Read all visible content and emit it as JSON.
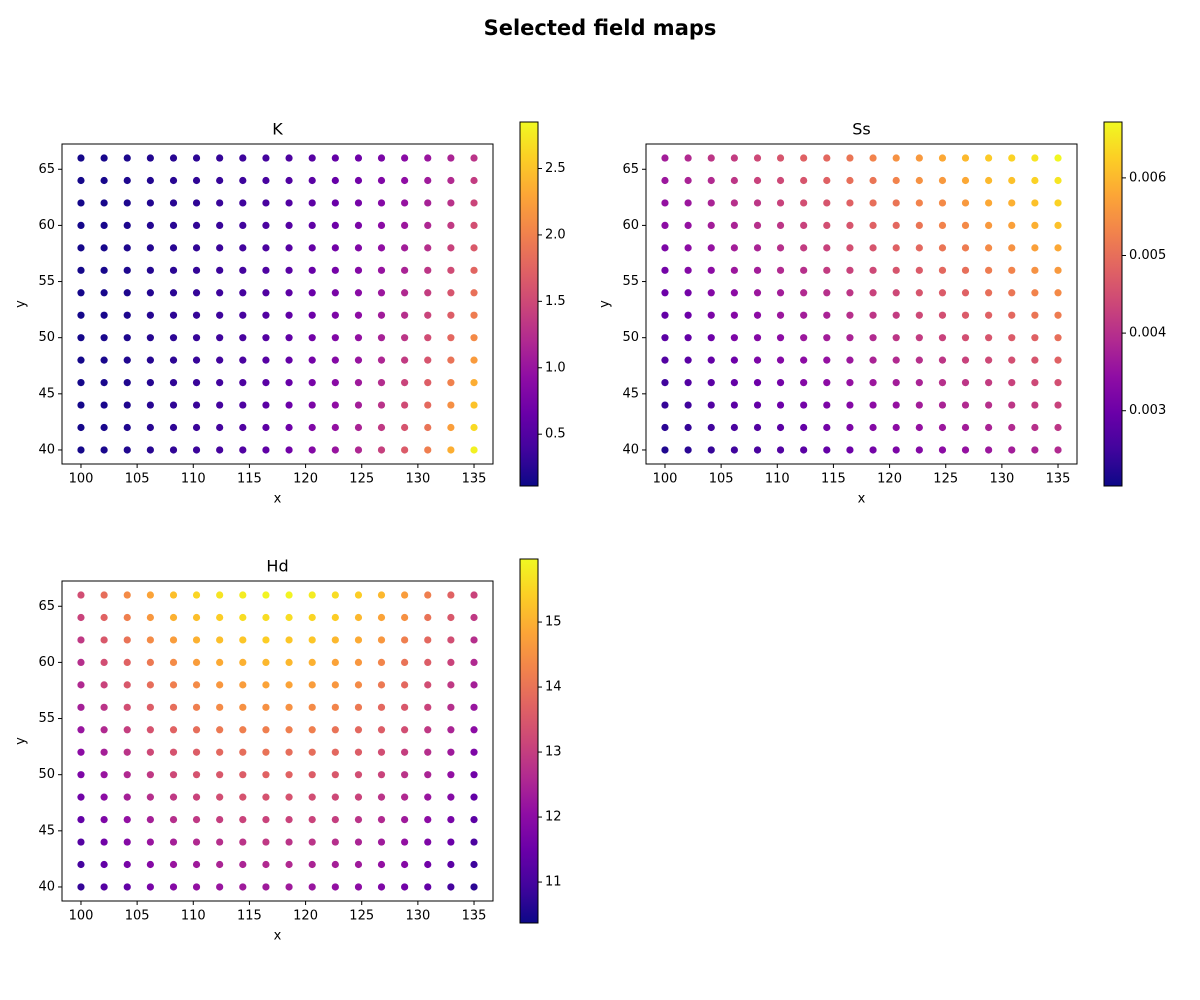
{
  "title": "Selected field maps",
  "chart_data": [
    {
      "type": "scatter",
      "title": "K",
      "xlabel": "x",
      "ylabel": "y",
      "colormap": "plasma",
      "x": [
        100,
        102.06,
        104.12,
        106.18,
        108.24,
        110.29,
        112.35,
        114.41,
        116.47,
        118.53,
        120.59,
        122.65,
        124.71,
        126.76,
        128.82,
        130.88,
        132.94,
        135
      ],
      "y": [
        40,
        42,
        44,
        46,
        48,
        50,
        52,
        54,
        56,
        58,
        60,
        62,
        64,
        66
      ],
      "values": [
        [
          0.15,
          0.18,
          0.21,
          0.25,
          0.3,
          0.35,
          0.42,
          0.5,
          0.59,
          0.71,
          0.84,
          1.0,
          1.18,
          1.41,
          1.67,
          1.98,
          2.36,
          2.8
        ],
        [
          0.15,
          0.18,
          0.21,
          0.25,
          0.29,
          0.35,
          0.41,
          0.49,
          0.58,
          0.69,
          0.81,
          0.96,
          1.14,
          1.35,
          1.6,
          1.89,
          2.24,
          2.65
        ],
        [
          0.15,
          0.18,
          0.21,
          0.25,
          0.29,
          0.34,
          0.41,
          0.48,
          0.56,
          0.67,
          0.79,
          0.93,
          1.09,
          1.29,
          1.52,
          1.8,
          2.12,
          2.5
        ],
        [
          0.15,
          0.18,
          0.21,
          0.24,
          0.29,
          0.34,
          0.4,
          0.47,
          0.55,
          0.64,
          0.76,
          0.89,
          1.05,
          1.23,
          1.45,
          1.7,
          2.0,
          2.35
        ],
        [
          0.15,
          0.18,
          0.21,
          0.24,
          0.28,
          0.33,
          0.39,
          0.45,
          0.53,
          0.62,
          0.73,
          0.85,
          1.0,
          1.17,
          1.37,
          1.61,
          1.88,
          2.21
        ],
        [
          0.15,
          0.18,
          0.2,
          0.24,
          0.28,
          0.33,
          0.38,
          0.44,
          0.52,
          0.6,
          0.71,
          0.82,
          0.96,
          1.12,
          1.31,
          1.53,
          1.78,
          2.08
        ],
        [
          0.15,
          0.17,
          0.2,
          0.24,
          0.28,
          0.32,
          0.37,
          0.43,
          0.5,
          0.59,
          0.68,
          0.79,
          0.92,
          1.07,
          1.25,
          1.45,
          1.69,
          1.96
        ],
        [
          0.15,
          0.17,
          0.2,
          0.23,
          0.27,
          0.32,
          0.37,
          0.42,
          0.49,
          0.57,
          0.66,
          0.77,
          0.89,
          1.03,
          1.2,
          1.39,
          1.61,
          1.86
        ],
        [
          0.15,
          0.17,
          0.2,
          0.23,
          0.27,
          0.31,
          0.36,
          0.41,
          0.48,
          0.55,
          0.64,
          0.74,
          0.85,
          0.99,
          1.14,
          1.32,
          1.52,
          1.76
        ],
        [
          0.15,
          0.17,
          0.2,
          0.23,
          0.26,
          0.3,
          0.35,
          0.4,
          0.46,
          0.53,
          0.62,
          0.71,
          0.82,
          0.94,
          1.08,
          1.25,
          1.43,
          1.65
        ],
        [
          0.15,
          0.17,
          0.2,
          0.23,
          0.26,
          0.3,
          0.34,
          0.39,
          0.45,
          0.52,
          0.59,
          0.68,
          0.78,
          0.9,
          1.03,
          1.18,
          1.36,
          1.56
        ],
        [
          0.15,
          0.17,
          0.2,
          0.22,
          0.26,
          0.29,
          0.34,
          0.38,
          0.44,
          0.5,
          0.57,
          0.66,
          0.75,
          0.86,
          0.98,
          1.12,
          1.28,
          1.46
        ],
        [
          0.15,
          0.17,
          0.2,
          0.22,
          0.25,
          0.29,
          0.33,
          0.37,
          0.43,
          0.49,
          0.55,
          0.63,
          0.72,
          0.82,
          0.93,
          1.06,
          1.21,
          1.38
        ],
        [
          0.15,
          0.17,
          0.19,
          0.22,
          0.25,
          0.28,
          0.32,
          0.37,
          0.41,
          0.47,
          0.53,
          0.61,
          0.69,
          0.78,
          0.89,
          1.01,
          1.15,
          1.3
        ]
      ],
      "xlim": [
        98.31,
        136.69
      ],
      "ylim": [
        38.75,
        67.25
      ],
      "xticks": [
        100,
        105,
        110,
        115,
        120,
        125,
        130,
        135
      ],
      "yticks": [
        40,
        45,
        50,
        55,
        60,
        65
      ],
      "clim": [
        0.11,
        2.85
      ],
      "cticks": [
        0.5,
        {
          "value": 1,
          "label": "1.0"
        },
        1.5,
        {
          "value": 2,
          "label": "2.0"
        },
        2.5
      ]
    },
    {
      "type": "scatter",
      "title": "Ss",
      "xlabel": "x",
      "ylabel": "y",
      "colormap": "plasma",
      "x": [
        100,
        102.06,
        104.12,
        106.18,
        108.24,
        110.29,
        112.35,
        114.41,
        116.47,
        118.53,
        120.59,
        122.65,
        124.71,
        126.76,
        128.82,
        130.88,
        132.94,
        135
      ],
      "y": [
        40,
        42,
        44,
        46,
        48,
        50,
        52,
        54,
        56,
        58,
        60,
        62,
        64,
        66
      ],
      "values": [
        [
          0.0022,
          0.0023,
          0.0024,
          0.0025,
          0.0026,
          0.0027,
          0.0028,
          0.0029,
          0.003,
          0.0031,
          0.0032,
          0.0033,
          0.0034,
          0.0035,
          0.0036,
          0.0037,
          0.0038,
          0.0039
        ],
        [
          0.0023,
          0.0024,
          0.0025,
          0.0026,
          0.0027,
          0.0028,
          0.0029,
          0.0031,
          0.0032,
          0.0033,
          0.0034,
          0.0035,
          0.0036,
          0.0037,
          0.0038,
          0.0039,
          0.004,
          0.0041
        ],
        [
          0.0024,
          0.0025,
          0.0027,
          0.0028,
          0.0029,
          0.003,
          0.0031,
          0.0032,
          0.0033,
          0.0034,
          0.0035,
          0.0037,
          0.0038,
          0.0039,
          0.004,
          0.0041,
          0.0042,
          0.0043
        ],
        [
          0.0025,
          0.0027,
          0.0028,
          0.0029,
          0.003,
          0.0031,
          0.0033,
          0.0034,
          0.0035,
          0.0036,
          0.0037,
          0.0038,
          0.004,
          0.0041,
          0.0042,
          0.0043,
          0.0044,
          0.0045
        ],
        [
          0.0027,
          0.0028,
          0.0029,
          0.003,
          0.0032,
          0.0033,
          0.0034,
          0.0035,
          0.0036,
          0.0038,
          0.0039,
          0.004,
          0.0041,
          0.0043,
          0.0044,
          0.0045,
          0.0046,
          0.0048
        ],
        [
          0.0028,
          0.0029,
          0.003,
          0.0032,
          0.0033,
          0.0034,
          0.0036,
          0.0037,
          0.0038,
          0.0039,
          0.0041,
          0.0042,
          0.0043,
          0.0045,
          0.0046,
          0.0047,
          0.0048,
          0.005
        ],
        [
          0.0029,
          0.003,
          0.0032,
          0.0033,
          0.0034,
          0.0036,
          0.0037,
          0.0038,
          0.004,
          0.0041,
          0.0042,
          0.0044,
          0.0045,
          0.0047,
          0.0048,
          0.0049,
          0.0051,
          0.0052
        ],
        [
          0.003,
          0.0031,
          0.0033,
          0.0034,
          0.0036,
          0.0037,
          0.0039,
          0.004,
          0.0041,
          0.0043,
          0.0044,
          0.0046,
          0.0047,
          0.0048,
          0.005,
          0.0051,
          0.0053,
          0.0054
        ],
        [
          0.0031,
          0.0033,
          0.0034,
          0.0036,
          0.0037,
          0.0039,
          0.004,
          0.0042,
          0.0043,
          0.0044,
          0.0046,
          0.0047,
          0.0049,
          0.005,
          0.0052,
          0.0053,
          0.0055,
          0.0056
        ],
        [
          0.0032,
          0.0034,
          0.0035,
          0.0037,
          0.0038,
          0.004,
          0.0042,
          0.0043,
          0.0045,
          0.0046,
          0.0048,
          0.0049,
          0.0051,
          0.0052,
          0.0054,
          0.0055,
          0.0057,
          0.0058
        ],
        [
          0.0034,
          0.0035,
          0.0037,
          0.0038,
          0.004,
          0.0041,
          0.0043,
          0.0045,
          0.0046,
          0.0048,
          0.0049,
          0.0051,
          0.0053,
          0.0054,
          0.0056,
          0.0057,
          0.0059,
          0.0061
        ],
        [
          0.0035,
          0.0036,
          0.0038,
          0.004,
          0.0041,
          0.0043,
          0.0045,
          0.0046,
          0.0048,
          0.005,
          0.0051,
          0.0053,
          0.0054,
          0.0056,
          0.0058,
          0.0059,
          0.0061,
          0.0063
        ],
        [
          0.0036,
          0.0038,
          0.0039,
          0.0041,
          0.0043,
          0.0044,
          0.0046,
          0.0048,
          0.005,
          0.0051,
          0.0053,
          0.0055,
          0.0056,
          0.0058,
          0.006,
          0.0061,
          0.0063,
          0.0065
        ],
        [
          0.0037,
          0.0039,
          0.0041,
          0.0042,
          0.0044,
          0.0046,
          0.0048,
          0.0049,
          0.0051,
          0.0053,
          0.0055,
          0.0056,
          0.0058,
          0.006,
          0.0062,
          0.0063,
          0.0065,
          0.0067
        ]
      ],
      "xlim": [
        98.31,
        136.69
      ],
      "ylim": [
        38.75,
        67.25
      ],
      "xticks": [
        100,
        105,
        110,
        115,
        120,
        125,
        130,
        135
      ],
      "yticks": [
        40,
        45,
        50,
        55,
        60,
        65
      ],
      "clim": [
        0.00203,
        0.00672
      ],
      "cticks": [
        0.003,
        0.004,
        0.005,
        0.006
      ]
    },
    {
      "type": "scatter",
      "title": "Hd",
      "xlabel": "x",
      "ylabel": "y",
      "colormap": "plasma",
      "x": [
        100,
        102.06,
        104.12,
        106.18,
        108.24,
        110.29,
        112.35,
        114.41,
        116.47,
        118.53,
        120.59,
        122.65,
        124.71,
        126.76,
        128.82,
        130.88,
        132.94,
        135
      ],
      "y": [
        40,
        42,
        44,
        46,
        48,
        50,
        52,
        54,
        56,
        58,
        60,
        62,
        64,
        66
      ],
      "values": [
        [
          10.8,
          11.2,
          11.4,
          11.7,
          11.9,
          12.1,
          12.2,
          12.3,
          12.3,
          12.3,
          12.2,
          12.1,
          12.0,
          11.8,
          11.6,
          11.4,
          11.0,
          10.7
        ],
        [
          11.0,
          11.4,
          11.7,
          11.9,
          12.2,
          12.3,
          12.5,
          12.5,
          12.6,
          12.6,
          12.5,
          12.4,
          12.3,
          12.1,
          11.9,
          11.6,
          11.3,
          10.9
        ],
        [
          11.2,
          11.6,
          11.9,
          12.2,
          12.4,
          12.6,
          12.7,
          12.8,
          12.9,
          12.8,
          12.8,
          12.7,
          12.5,
          12.3,
          12.1,
          11.8,
          11.5,
          11.1
        ],
        [
          11.4,
          11.8,
          12.1,
          12.4,
          12.7,
          12.9,
          13.0,
          13.1,
          13.1,
          13.1,
          13.1,
          13.0,
          12.8,
          12.6,
          12.3,
          12.0,
          11.7,
          11.3
        ],
        [
          11.6,
          12.0,
          12.4,
          12.7,
          12.9,
          13.1,
          13.3,
          13.4,
          13.4,
          13.4,
          13.3,
          13.2,
          13.1,
          12.8,
          12.6,
          12.2,
          11.9,
          11.4
        ],
        [
          11.8,
          12.2,
          12.6,
          12.9,
          13.2,
          13.4,
          13.5,
          13.6,
          13.7,
          13.7,
          13.6,
          13.5,
          13.3,
          13.1,
          12.8,
          12.5,
          12.1,
          11.6
        ],
        [
          12.0,
          12.4,
          12.8,
          13.2,
          13.4,
          13.6,
          13.8,
          13.9,
          14.0,
          13.9,
          13.9,
          13.8,
          13.6,
          13.3,
          13.0,
          12.7,
          12.3,
          11.8
        ],
        [
          12.2,
          12.6,
          13.0,
          13.4,
          13.7,
          13.9,
          14.1,
          14.2,
          14.2,
          14.2,
          14.2,
          14.0,
          13.8,
          13.6,
          13.3,
          12.9,
          12.5,
          12.0
        ],
        [
          12.4,
          12.8,
          13.3,
          13.6,
          13.9,
          14.2,
          14.4,
          14.5,
          14.5,
          14.5,
          14.4,
          14.3,
          14.1,
          13.8,
          13.5,
          13.1,
          12.7,
          12.2
        ],
        [
          12.6,
          13.1,
          13.5,
          13.9,
          14.2,
          14.4,
          14.6,
          14.7,
          14.8,
          14.8,
          14.7,
          14.6,
          14.4,
          14.1,
          13.8,
          13.3,
          12.9,
          12.4
        ],
        [
          12.7,
          13.3,
          13.7,
          14.1,
          14.4,
          14.7,
          14.9,
          15.0,
          15.1,
          15.1,
          15.0,
          14.8,
          14.6,
          14.3,
          14.0,
          13.6,
          13.1,
          12.6
        ],
        [
          12.9,
          13.5,
          14.0,
          14.4,
          14.7,
          15.0,
          15.2,
          15.3,
          15.4,
          15.3,
          15.3,
          15.1,
          14.9,
          14.6,
          14.2,
          13.8,
          13.3,
          12.7
        ],
        [
          13.1,
          13.7,
          14.2,
          14.6,
          15.0,
          15.2,
          15.4,
          15.6,
          15.6,
          15.6,
          15.5,
          15.4,
          15.1,
          14.8,
          14.5,
          14.0,
          13.5,
          12.9
        ],
        [
          13.3,
          13.9,
          14.4,
          14.8,
          15.2,
          15.5,
          15.7,
          15.8,
          15.9,
          15.9,
          15.8,
          15.6,
          15.4,
          15.1,
          14.7,
          14.2,
          13.7,
          13.1
        ]
      ],
      "xlim": [
        98.31,
        136.69
      ],
      "ylim": [
        38.75,
        67.25
      ],
      "xticks": [
        100,
        105,
        110,
        115,
        120,
        125,
        130,
        135
      ],
      "yticks": [
        40,
        45,
        50,
        55,
        60,
        65
      ],
      "clim": [
        10.37,
        15.97
      ],
      "cticks": [
        11,
        12,
        13,
        14,
        15
      ]
    }
  ]
}
